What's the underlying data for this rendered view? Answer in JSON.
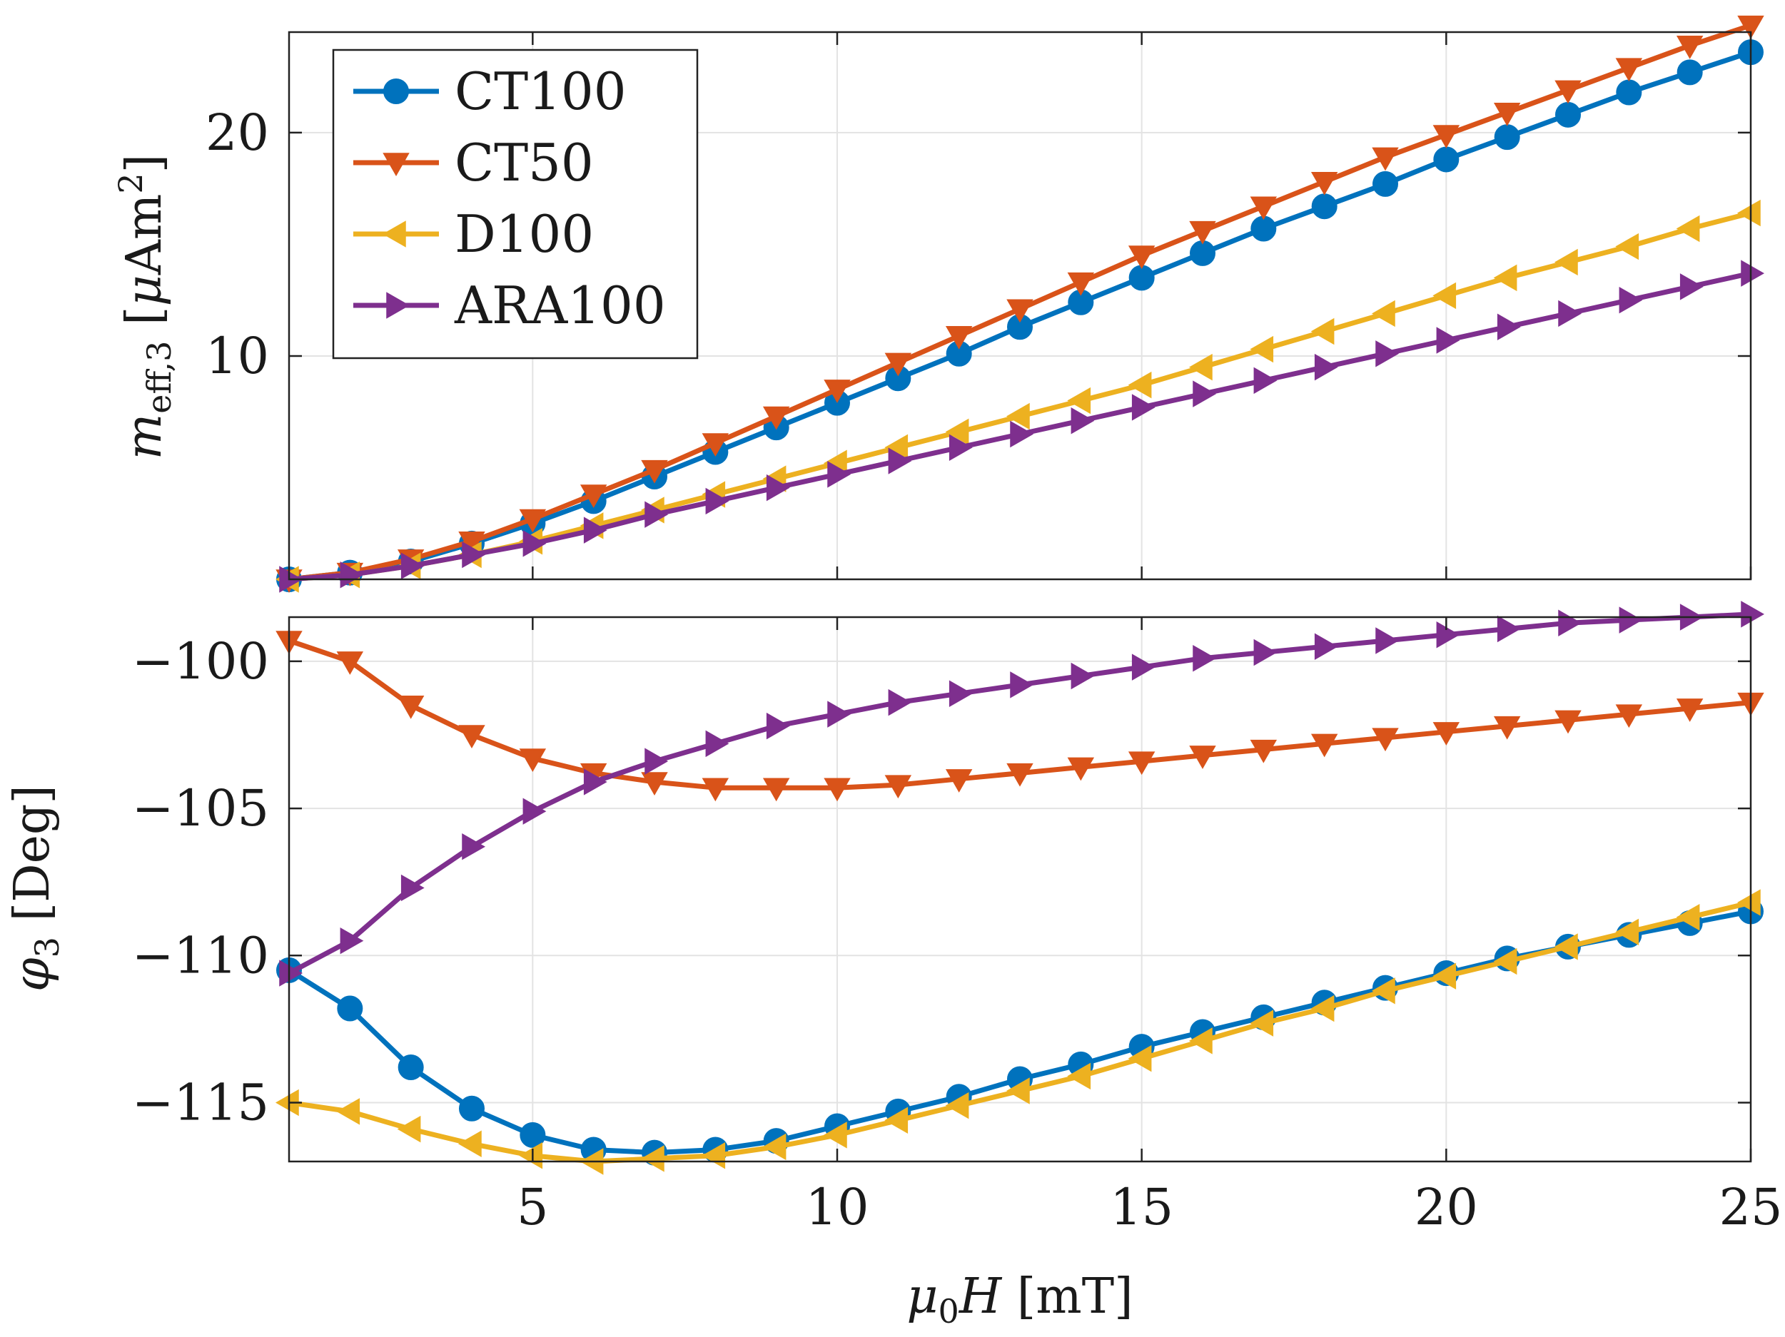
{
  "chart_data": [
    {
      "type": "line",
      "id": "top",
      "ylabel": "m_eff,3 [μAm²]",
      "xlabel": "",
      "xlim": [
        1,
        25
      ],
      "ylim": [
        0,
        24.5
      ],
      "yticks": [
        10,
        20
      ],
      "xticks": [
        5,
        10,
        15,
        20,
        25
      ],
      "show_x_tick_labels": false,
      "grid": true,
      "legend": {
        "placement": "top-left",
        "entries": [
          "CT100",
          "CT50",
          "D100",
          "ARA100"
        ]
      },
      "x": [
        1,
        2,
        3,
        4,
        5,
        6,
        7,
        8,
        9,
        10,
        11,
        12,
        13,
        14,
        15,
        16,
        17,
        18,
        19,
        20,
        21,
        22,
        23,
        24,
        25
      ],
      "series": [
        {
          "name": "CT100",
          "values": [
            0.0,
            0.3,
            0.8,
            1.6,
            2.5,
            3.5,
            4.6,
            5.7,
            6.8,
            7.9,
            9.0,
            10.1,
            11.3,
            12.4,
            13.5,
            14.6,
            15.7,
            16.7,
            17.7,
            18.8,
            19.8,
            20.8,
            21.8,
            22.7,
            23.6
          ]
        },
        {
          "name": "CT50",
          "values": [
            0.0,
            0.3,
            0.9,
            1.7,
            2.7,
            3.8,
            4.9,
            6.1,
            7.3,
            8.5,
            9.7,
            10.9,
            12.1,
            13.3,
            14.5,
            15.6,
            16.7,
            17.8,
            18.9,
            19.9,
            20.9,
            21.9,
            22.9,
            23.9,
            24.8
          ]
        },
        {
          "name": "D100",
          "values": [
            0.0,
            0.2,
            0.6,
            1.1,
            1.7,
            2.4,
            3.1,
            3.8,
            4.5,
            5.2,
            5.9,
            6.6,
            7.3,
            8.0,
            8.7,
            9.5,
            10.3,
            11.1,
            11.9,
            12.7,
            13.5,
            14.2,
            14.9,
            15.7,
            16.4
          ]
        },
        {
          "name": "ARA100",
          "values": [
            0.0,
            0.2,
            0.6,
            1.1,
            1.6,
            2.2,
            2.9,
            3.5,
            4.1,
            4.7,
            5.3,
            5.9,
            6.5,
            7.1,
            7.7,
            8.3,
            8.9,
            9.5,
            10.1,
            10.7,
            11.3,
            11.9,
            12.5,
            13.1,
            13.7
          ]
        }
      ]
    },
    {
      "type": "line",
      "id": "bottom",
      "ylabel": "φ3 [Deg]",
      "xlabel": "μ0H [mT]",
      "xlim": [
        1,
        25
      ],
      "ylim": [
        -117,
        -98.5
      ],
      "yticks": [
        -100,
        -105,
        -110,
        -115
      ],
      "ytick_labels": [
        "−100",
        "−105",
        "−110",
        "−115"
      ],
      "xticks": [
        5,
        10,
        15,
        20,
        25
      ],
      "xtick_labels": [
        "5",
        "10",
        "15",
        "20",
        "25"
      ],
      "grid": true,
      "x": [
        1,
        2,
        3,
        4,
        5,
        6,
        7,
        8,
        9,
        10,
        11,
        12,
        13,
        14,
        15,
        16,
        17,
        18,
        19,
        20,
        21,
        22,
        23,
        24,
        25
      ],
      "series": [
        {
          "name": "CT100",
          "values": [
            -110.5,
            -111.8,
            -113.8,
            -115.2,
            -116.1,
            -116.6,
            -116.7,
            -116.6,
            -116.3,
            -115.8,
            -115.3,
            -114.8,
            -114.2,
            -113.7,
            -113.1,
            -112.6,
            -112.1,
            -111.6,
            -111.1,
            -110.6,
            -110.1,
            -109.7,
            -109.3,
            -108.9,
            -108.5
          ]
        },
        {
          "name": "CT50",
          "values": [
            -99.3,
            -100.0,
            -101.5,
            -102.5,
            -103.3,
            -103.8,
            -104.1,
            -104.3,
            -104.3,
            -104.3,
            -104.2,
            -104.0,
            -103.8,
            -103.6,
            -103.4,
            -103.2,
            -103.0,
            -102.8,
            -102.6,
            -102.4,
            -102.2,
            -102.0,
            -101.8,
            -101.6,
            -101.4
          ]
        },
        {
          "name": "D100",
          "values": [
            -115.0,
            -115.3,
            -115.9,
            -116.4,
            -116.8,
            -117.0,
            -116.9,
            -116.8,
            -116.5,
            -116.1,
            -115.6,
            -115.1,
            -114.6,
            -114.1,
            -113.5,
            -112.9,
            -112.3,
            -111.8,
            -111.2,
            -110.7,
            -110.2,
            -109.7,
            -109.2,
            -108.7,
            -108.2
          ]
        },
        {
          "name": "ARA100",
          "values": [
            -110.6,
            -109.5,
            -107.7,
            -106.3,
            -105.1,
            -104.1,
            -103.4,
            -102.8,
            -102.2,
            -101.8,
            -101.4,
            -101.1,
            -100.8,
            -100.5,
            -100.2,
            -99.9,
            -99.7,
            -99.5,
            -99.3,
            -99.1,
            -98.9,
            -98.7,
            -98.6,
            -98.5,
            -98.4
          ]
        }
      ]
    }
  ],
  "colors": {
    "CT100": "#0072BD",
    "CT50": "#D95319",
    "D100": "#EDB120",
    "ARA100": "#7E2F8E"
  },
  "markers": {
    "CT100": "circle",
    "CT50": "triangle-down",
    "D100": "triangle-left",
    "ARA100": "triangle-right"
  }
}
